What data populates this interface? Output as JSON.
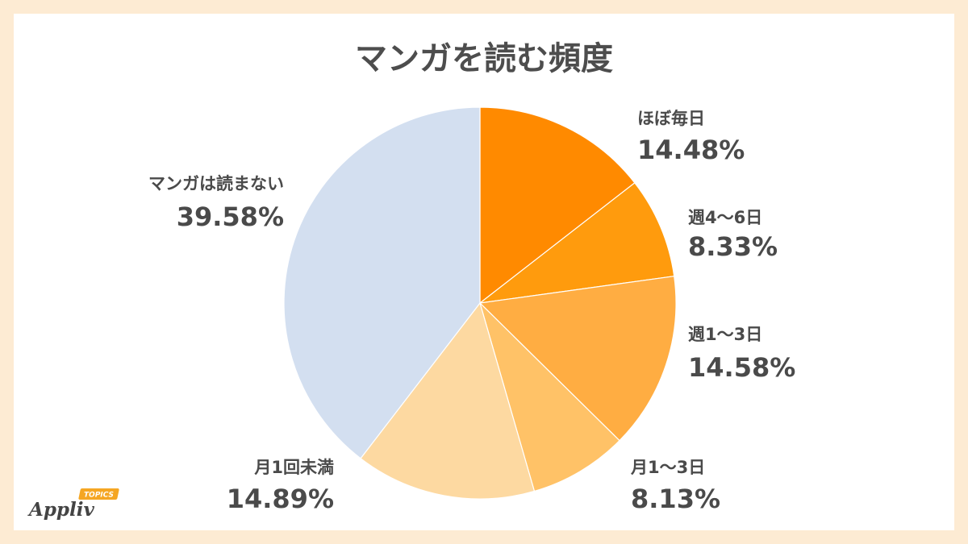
{
  "page": {
    "background": "#FDEBD3",
    "panel": "#FFFFFF"
  },
  "logo": {
    "name": "Appliv",
    "badge": "TOPICS",
    "badge_color": "#F5A623"
  },
  "chart_data": {
    "type": "pie",
    "title": "マンガを読む頻度",
    "unit": "%",
    "start": "top",
    "direction": "clockwise",
    "slices": [
      {
        "label": "ほぼ毎日",
        "value": 14.48,
        "color": "#FF8A00"
      },
      {
        "label": "週4〜6日",
        "value": 8.33,
        "color": "#FF9B0D"
      },
      {
        "label": "週1〜3日",
        "value": 14.58,
        "color": "#FFAD42"
      },
      {
        "label": "月1〜3日",
        "value": 8.13,
        "color": "#FFC267"
      },
      {
        "label": "月1回未満",
        "value": 14.89,
        "color": "#FDD9A1"
      },
      {
        "label": "マンガは読まない",
        "value": 39.58,
        "color": "#D3DFF0"
      }
    ]
  }
}
